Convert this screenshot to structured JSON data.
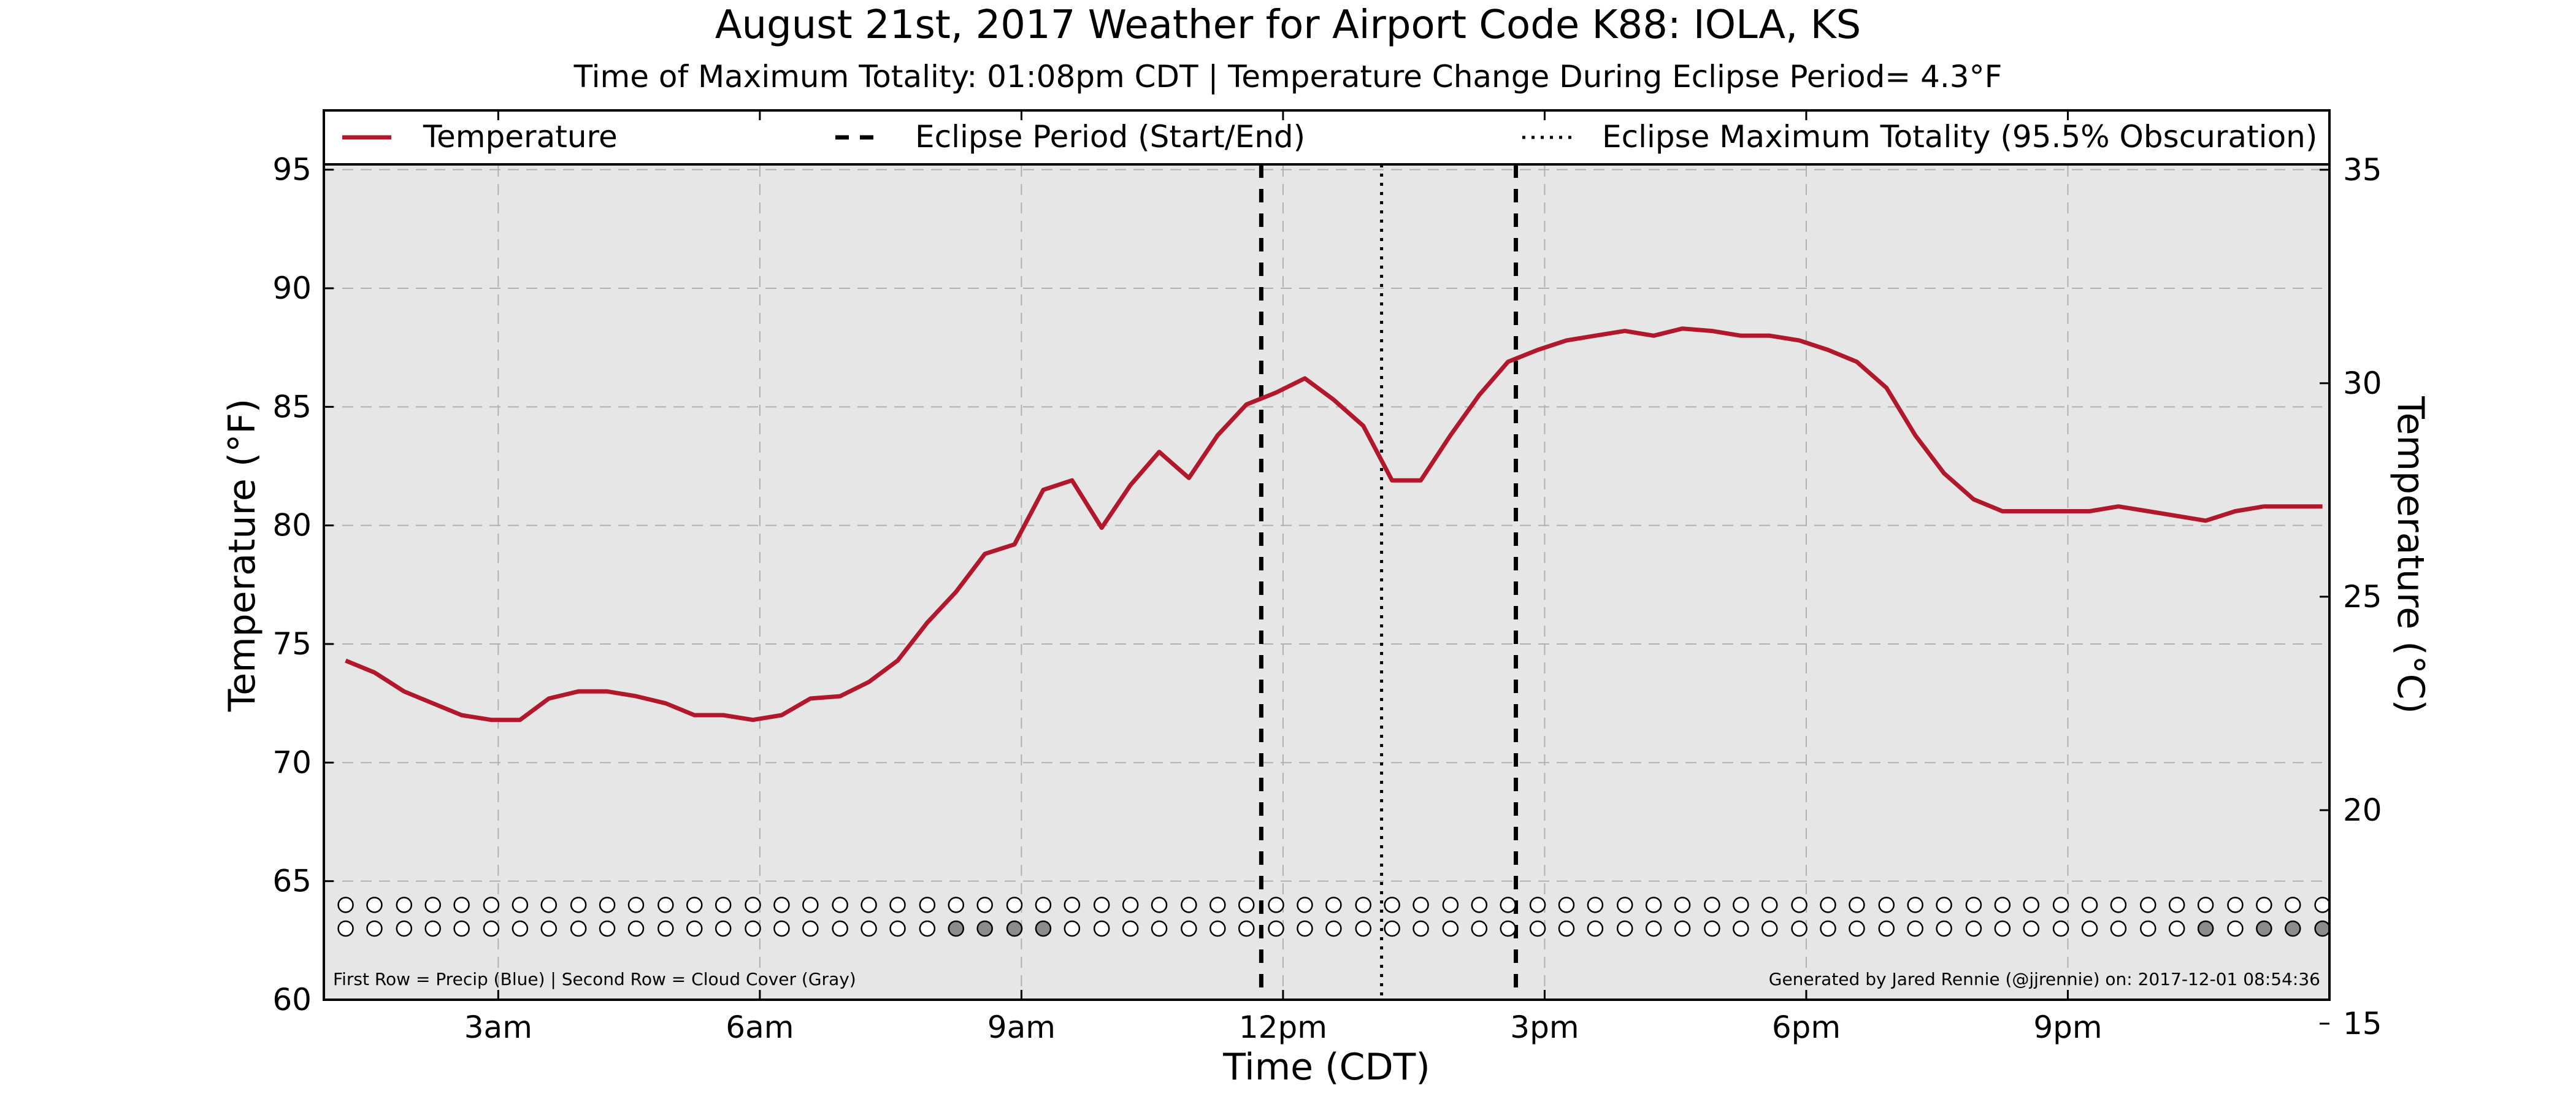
{
  "chart_data": {
    "type": "line",
    "title": "August 21st, 2017 Weather for Airport Code K88: IOLA, KS",
    "subtitle": "Time of Maximum Totality: 01:08pm CDT | Temperature Change During Eclipse Period= 4.3°F",
    "xlabel": "Time (CDT)",
    "ylabel": "Temperature (°F)",
    "ylabel_right": "Temperature (°C)",
    "x_unit": "hours CDT",
    "xlim": [
      1.0,
      24.0
    ],
    "ylim": [
      60,
      97.5
    ],
    "ylim_right": [
      15.56,
      36.39
    ],
    "grid": true,
    "legend_position": "top",
    "x_ticks": [
      {
        "value": 3,
        "label": "3am"
      },
      {
        "value": 6,
        "label": "6am"
      },
      {
        "value": 9,
        "label": "9am"
      },
      {
        "value": 12,
        "label": "12pm"
      },
      {
        "value": 15,
        "label": "3pm"
      },
      {
        "value": 18,
        "label": "6pm"
      },
      {
        "value": 21,
        "label": "9pm"
      }
    ],
    "y_ticks": [
      60,
      65,
      70,
      75,
      80,
      85,
      90,
      95
    ],
    "y_ticks_right": [
      15,
      20,
      25,
      30,
      35
    ],
    "legend": {
      "temperature": "Temperature",
      "eclipse_period": "Eclipse Period (Start/End)",
      "eclipse_max": "Eclipse Maximum Totality (95.5% Obscuration)"
    },
    "series": [
      {
        "name": "Temperature",
        "color": "#b2182b",
        "x": [
          1.25,
          1.58,
          1.92,
          2.25,
          2.58,
          2.92,
          3.25,
          3.58,
          3.92,
          4.25,
          4.58,
          4.92,
          5.25,
          5.58,
          5.92,
          6.25,
          6.58,
          6.92,
          7.25,
          7.58,
          7.92,
          8.25,
          8.58,
          8.92,
          9.25,
          9.58,
          9.92,
          10.25,
          10.58,
          10.92,
          11.25,
          11.58,
          11.92,
          12.25,
          12.58,
          12.92,
          13.25,
          13.58,
          13.92,
          14.25,
          14.58,
          14.92,
          15.25,
          15.58,
          15.92,
          16.25,
          16.58,
          16.92,
          17.25,
          17.58,
          17.92,
          18.25,
          18.58,
          18.92,
          19.25,
          19.58,
          19.92,
          20.25,
          20.58,
          20.92,
          21.25,
          21.58,
          21.92,
          22.25,
          22.58,
          22.92,
          23.25,
          23.58,
          23.92
        ],
        "values": [
          74.3,
          73.8,
          73.0,
          72.5,
          72.0,
          71.8,
          71.8,
          72.7,
          73.0,
          73.0,
          72.8,
          72.5,
          72.0,
          72.0,
          71.8,
          72.0,
          72.7,
          72.8,
          73.4,
          74.3,
          75.9,
          77.2,
          78.8,
          79.2,
          81.5,
          81.9,
          79.9,
          81.7,
          83.1,
          82.0,
          83.8,
          85.1,
          85.6,
          86.2,
          85.3,
          84.2,
          81.9,
          81.9,
          83.8,
          85.5,
          86.9,
          87.4,
          87.8,
          88.0,
          88.2,
          88.0,
          88.3,
          88.2,
          88.0,
          88.0,
          87.8,
          87.4,
          86.9,
          85.8,
          83.8,
          82.2,
          81.1,
          80.6,
          80.6,
          80.6,
          80.6,
          80.8,
          80.6,
          80.4,
          80.2,
          80.6,
          80.8,
          80.8,
          80.8
        ]
      }
    ],
    "eclipse_start": 11.75,
    "eclipse_end": 14.67,
    "eclipse_max": 13.13,
    "marker_rows": {
      "x": [
        1.25,
        1.58,
        1.92,
        2.25,
        2.58,
        2.92,
        3.25,
        3.58,
        3.92,
        4.25,
        4.58,
        4.92,
        5.25,
        5.58,
        5.92,
        6.25,
        6.58,
        6.92,
        7.25,
        7.58,
        7.92,
        8.25,
        8.58,
        8.92,
        9.25,
        9.58,
        9.92,
        10.25,
        10.58,
        10.92,
        11.25,
        11.58,
        11.92,
        12.25,
        12.58,
        12.92,
        13.25,
        13.58,
        13.92,
        14.25,
        14.58,
        14.92,
        15.25,
        15.58,
        15.92,
        16.25,
        16.58,
        16.92,
        17.25,
        17.58,
        17.92,
        18.25,
        18.58,
        18.92,
        19.25,
        19.58,
        19.92,
        20.25,
        20.58,
        20.92,
        21.25,
        21.58,
        21.92,
        22.25,
        22.58,
        22.92,
        23.25,
        23.58,
        23.92
      ],
      "precip_y": 64,
      "cloud_y": 63,
      "cloud_gray_x": [
        8.25,
        8.58,
        8.92,
        9.25,
        22.58,
        23.25,
        23.58,
        23.92
      ],
      "marker_color": "#ffffff",
      "cloud_color": "#8c8c8c"
    },
    "footnote_left": "First Row = Precip (Blue) | Second Row = Cloud Cover (Gray)",
    "footnote_right": "Generated by Jared Rennie (@jjrennie) on: 2017-12-01 08:54:36",
    "plot_background": "#e6e6e6",
    "grid_color": "#b0b0b0"
  }
}
